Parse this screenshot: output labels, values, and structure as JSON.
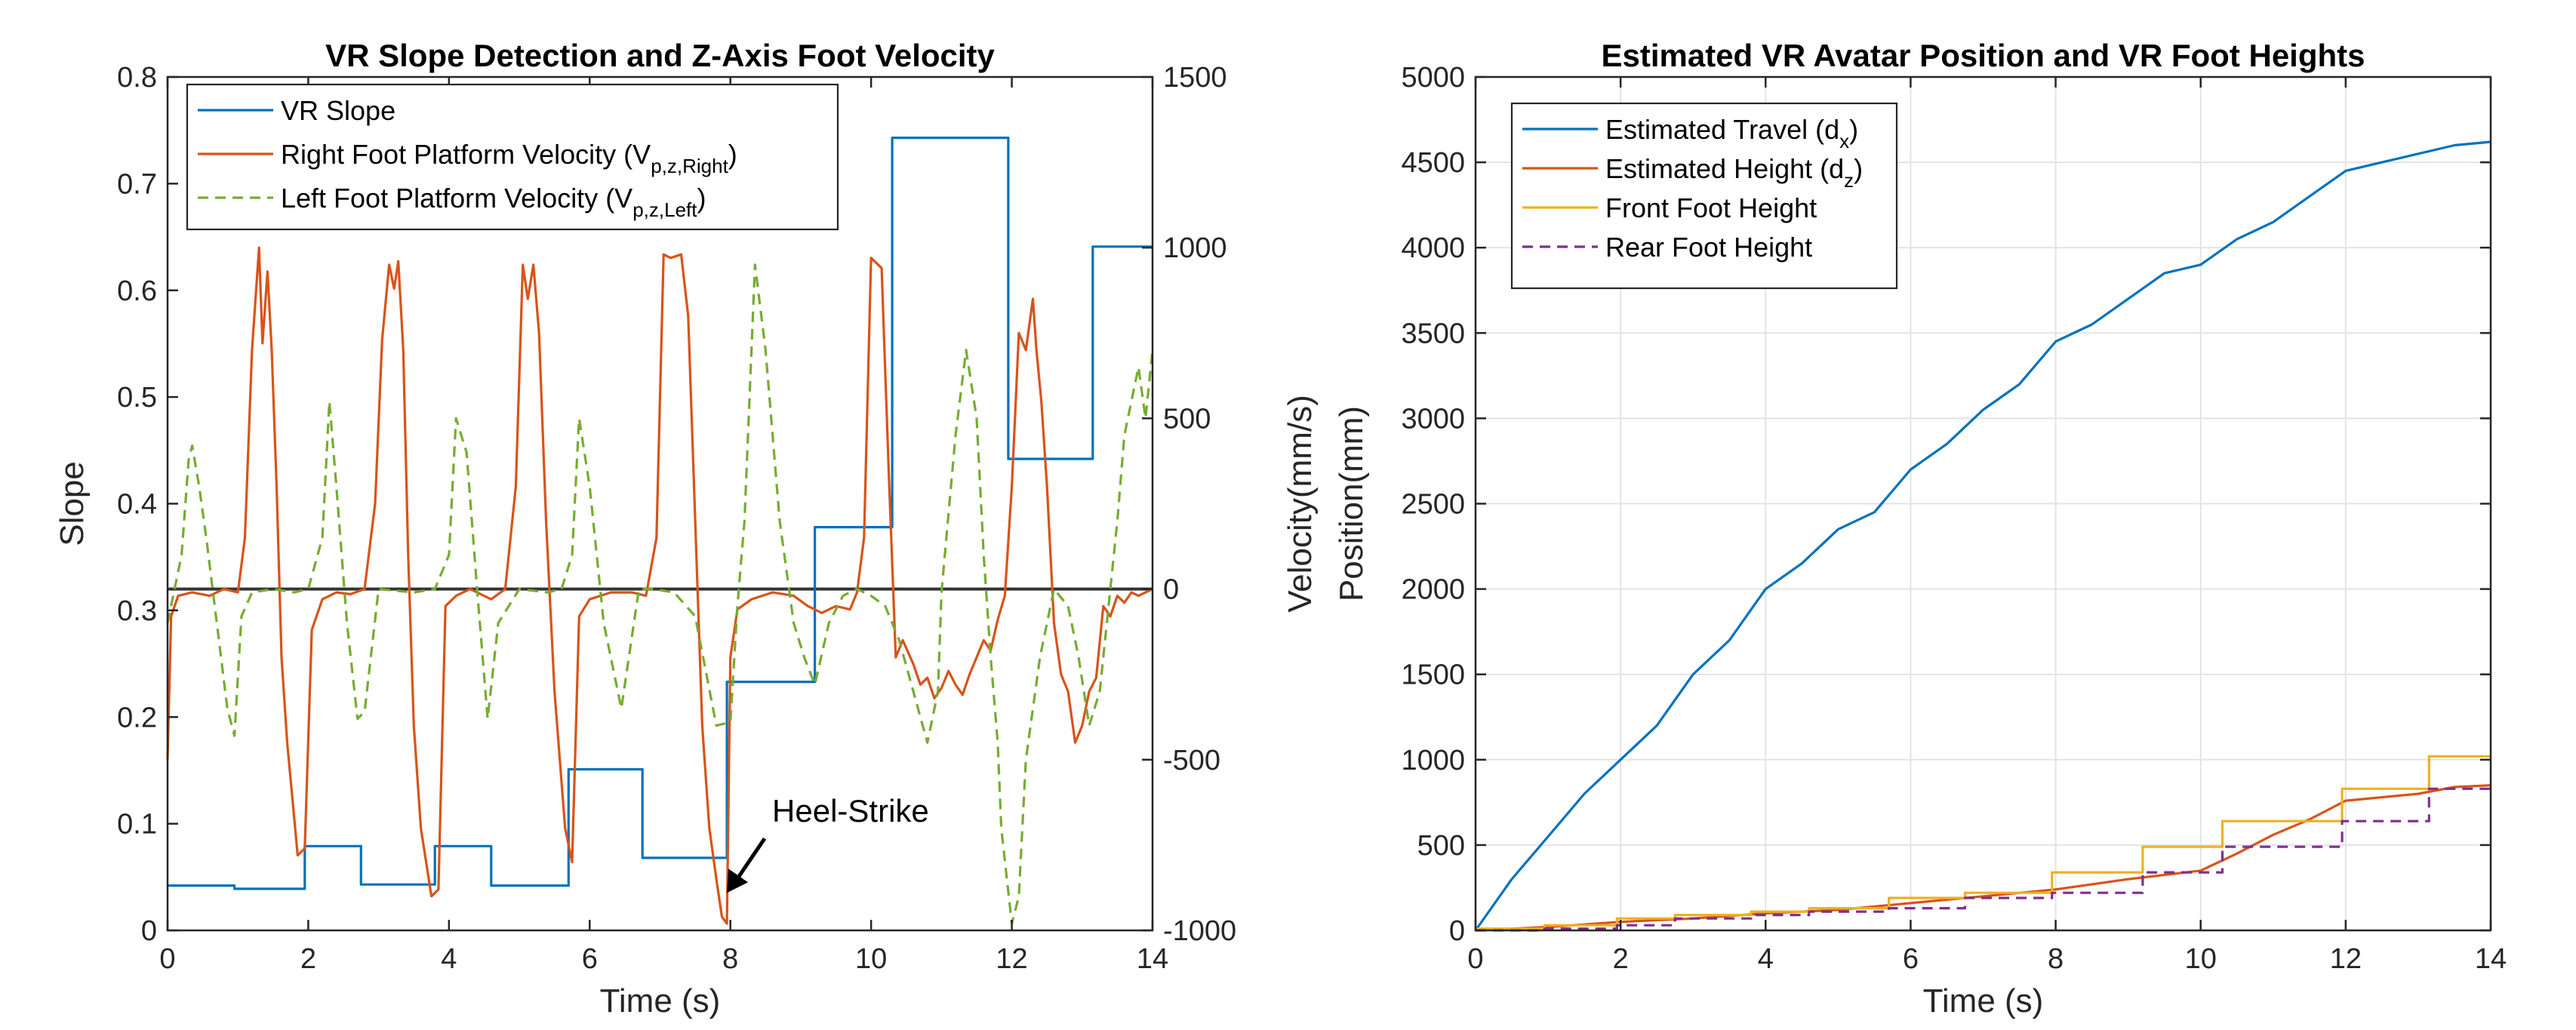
{
  "chart_data": [
    {
      "type": "line",
      "title": "VR Slope Detection and Z-Axis Foot Velocity",
      "xlabel": "Time (s)",
      "ylabel": "Slope",
      "ylabel_right": "Velocity(mm/s)",
      "xlim": [
        0,
        14
      ],
      "ylim": [
        0,
        0.8
      ],
      "ylim_right": [
        -1000,
        1500
      ],
      "x_ticks": [
        "0",
        "2",
        "4",
        "6",
        "8",
        "10",
        "12",
        "14"
      ],
      "y_ticks": [
        "0",
        "0.1",
        "0.2",
        "0.3",
        "0.4",
        "0.5",
        "0.6",
        "0.7",
        "0.8"
      ],
      "y_ticks_right": [
        "-1000",
        "-500",
        "0",
        "500",
        "1000",
        "1500"
      ],
      "grid": false,
      "legend_position": "top-left",
      "annotation": "Heel-Strike",
      "annotation_point": [
        7.95,
        -890
      ],
      "series": [
        {
          "name": "VR Slope",
          "color": "#0072BD",
          "style": "solid",
          "axis": "left",
          "step_x": [
            0,
            0.95,
            1.95,
            2.75,
            3.8,
            4.6,
            5.7,
            6.75,
            7.95,
            9.2,
            10.3,
            11.95,
            13.15,
            14
          ],
          "step_y": [
            0.042,
            0.039,
            0.079,
            0.043,
            0.079,
            0.042,
            0.151,
            0.068,
            0.233,
            0.378,
            0.743,
            0.442,
            0.641
          ]
        },
        {
          "name": "Right Foot Platform Velocity (V",
          "sub": "p,z,Right",
          "color": "#D95319",
          "style": "solid",
          "axis": "right",
          "x": [
            0,
            0.05,
            0.15,
            0.35,
            0.6,
            0.8,
            1.0,
            1.1,
            1.2,
            1.3,
            1.35,
            1.42,
            1.48,
            1.55,
            1.62,
            1.7,
            1.85,
            1.95,
            2.05,
            2.2,
            2.4,
            2.6,
            2.8,
            2.95,
            3.05,
            3.15,
            3.22,
            3.28,
            3.35,
            3.42,
            3.5,
            3.6,
            3.75,
            3.85,
            3.95,
            4.1,
            4.3,
            4.6,
            4.8,
            4.95,
            5.05,
            5.12,
            5.2,
            5.28,
            5.38,
            5.5,
            5.65,
            5.75,
            5.85,
            6.0,
            6.3,
            6.6,
            6.8,
            6.95,
            7.05,
            7.15,
            7.3,
            7.4,
            7.5,
            7.6,
            7.7,
            7.8,
            7.88,
            7.95,
            8.0,
            8.1,
            8.3,
            8.6,
            8.9,
            9.1,
            9.3,
            9.5,
            9.7,
            9.8,
            9.9,
            10.0,
            10.15,
            10.25,
            10.35,
            10.45,
            10.6,
            10.7,
            10.8,
            10.9,
            11.0,
            11.1,
            11.2,
            11.3,
            11.4,
            11.5,
            11.6,
            11.7,
            11.8,
            11.9,
            12.0,
            12.1,
            12.2,
            12.3,
            12.35,
            12.42,
            12.5,
            12.6,
            12.7,
            12.8,
            12.9,
            13.0,
            13.1,
            13.2,
            13.3,
            13.4,
            13.5,
            13.6,
            13.7,
            13.8,
            14.0
          ],
          "y": [
            -500,
            -80,
            -20,
            -10,
            -20,
            0,
            -10,
            150,
            700,
            1000,
            720,
            930,
            700,
            300,
            -200,
            -450,
            -780,
            -760,
            -120,
            -30,
            -10,
            -15,
            0,
            250,
            730,
            950,
            880,
            960,
            700,
            100,
            -400,
            -700,
            -900,
            -880,
            -50,
            -20,
            0,
            -30,
            0,
            300,
            950,
            850,
            950,
            750,
            200,
            -300,
            -700,
            -800,
            -80,
            -30,
            -10,
            -10,
            -20,
            150,
            980,
            970,
            980,
            800,
            200,
            -400,
            -700,
            -850,
            -960,
            -980,
            -200,
            -60,
            -30,
            -10,
            -20,
            -50,
            -70,
            -50,
            -60,
            -10,
            150,
            970,
            940,
            350,
            -200,
            -150,
            -220,
            -280,
            -260,
            -320,
            -290,
            -240,
            -280,
            -310,
            -250,
            -200,
            -150,
            -180,
            -90,
            -20,
            300,
            750,
            700,
            850,
            700,
            550,
            300,
            -100,
            -250,
            -300,
            -450,
            -400,
            -300,
            -260,
            -50,
            -80,
            -20,
            -40,
            -10,
            -20,
            0
          ]
        },
        {
          "name": "Left Foot Platform Velocity (V",
          "sub": "p,z,Left",
          "color": "#77AC30",
          "style": "dashed",
          "axis": "right",
          "x": [
            0,
            0.1,
            0.2,
            0.3,
            0.35,
            0.45,
            0.55,
            0.7,
            0.85,
            0.95,
            1.05,
            1.2,
            1.5,
            1.8,
            2.0,
            2.2,
            2.3,
            2.4,
            2.55,
            2.7,
            2.8,
            3.0,
            3.5,
            3.8,
            4.0,
            4.1,
            4.25,
            4.4,
            4.55,
            4.7,
            5.0,
            5.4,
            5.6,
            5.75,
            5.85,
            6.0,
            6.2,
            6.45,
            6.7,
            6.9,
            7.2,
            7.5,
            7.8,
            8.0,
            8.1,
            8.2,
            8.35,
            8.5,
            8.7,
            8.9,
            9.05,
            9.2,
            9.4,
            9.6,
            9.8,
            10.0,
            10.2,
            10.4,
            10.6,
            10.8,
            10.95,
            11.0,
            11.2,
            11.35,
            11.5,
            11.6,
            11.7,
            11.8,
            11.85,
            12.0,
            12.1,
            12.2,
            12.4,
            12.6,
            12.8,
            12.95,
            13.1,
            13.25,
            13.4,
            13.5,
            13.6,
            13.8,
            13.9,
            14.0
          ],
          "y": [
            -100,
            0,
            100,
            380,
            420,
            300,
            150,
            -100,
            -350,
            -430,
            -80,
            -10,
            0,
            -10,
            0,
            150,
            550,
            300,
            -100,
            -380,
            -360,
            0,
            -10,
            0,
            100,
            500,
            400,
            0,
            -380,
            -100,
            0,
            -10,
            0,
            100,
            500,
            300,
            -100,
            -350,
            0,
            0,
            -10,
            -80,
            -400,
            -390,
            -50,
            200,
            950,
            700,
            200,
            -100,
            -200,
            -280,
            -100,
            -20,
            0,
            -20,
            -50,
            -150,
            -300,
            -450,
            -300,
            -10,
            450,
            700,
            500,
            100,
            -200,
            -450,
            -700,
            -980,
            -900,
            -500,
            -200,
            0,
            -50,
            -200,
            -400,
            -300,
            0,
            200,
            450,
            650,
            500,
            700
          ]
        }
      ]
    },
    {
      "type": "line",
      "title": "Estimated VR Avatar Position and VR Foot Heights",
      "xlabel": "Time (s)",
      "ylabel": "Position(mm)",
      "xlim": [
        0,
        14
      ],
      "ylim": [
        0,
        5000
      ],
      "x_ticks": [
        "0",
        "2",
        "4",
        "6",
        "8",
        "10",
        "12",
        "14"
      ],
      "y_ticks": [
        "0",
        "500",
        "1000",
        "1500",
        "2000",
        "2500",
        "3000",
        "3500",
        "4000",
        "4500",
        "5000"
      ],
      "grid": true,
      "legend_position": "top-left",
      "series": [
        {
          "name": "Estimated Travel (d",
          "sub": "x",
          "color": "#0072BD",
          "style": "solid",
          "x": [
            0,
            0.5,
            1,
            1.5,
            2,
            2.5,
            3,
            3.5,
            4,
            4.5,
            5,
            5.5,
            6,
            6.5,
            7,
            7.5,
            8,
            8.5,
            9,
            9.5,
            10,
            10.5,
            11,
            11.5,
            12,
            12.5,
            13,
            13.5,
            14
          ],
          "y": [
            0,
            300,
            550,
            800,
            1000,
            1200,
            1500,
            1700,
            2000,
            2150,
            2350,
            2450,
            2700,
            2850,
            3050,
            3200,
            3450,
            3550,
            3700,
            3850,
            3900,
            4050,
            4150,
            4300,
            4450,
            4500,
            4550,
            4600,
            4620
          ]
        },
        {
          "name": "Estimated Height (d",
          "sub": "z",
          "color": "#D95319",
          "style": "solid",
          "x": [
            0,
            1,
            2,
            3,
            4,
            5,
            6,
            7,
            8,
            9,
            10,
            10.5,
            11,
            11.5,
            12,
            13,
            13.5,
            14
          ],
          "y": [
            0,
            20,
            50,
            70,
            100,
            120,
            160,
            200,
            240,
            300,
            350,
            450,
            560,
            650,
            760,
            800,
            840,
            850
          ]
        },
        {
          "name": "Front Foot Height",
          "sub": "",
          "color": "#EDB120",
          "style": "solid",
          "step_x": [
            0,
            0.95,
            1.95,
            2.75,
            3.8,
            4.6,
            5.7,
            6.75,
            7.95,
            9.2,
            10.3,
            11.95,
            13.15,
            14
          ],
          "step_y": [
            10,
            30,
            70,
            90,
            110,
            130,
            190,
            220,
            340,
            490,
            640,
            830,
            1020
          ]
        },
        {
          "name": "Rear Foot Height",
          "sub": "",
          "color": "#7E2F8E",
          "style": "dashed",
          "step_x": [
            0,
            0.95,
            1.95,
            2.75,
            3.8,
            4.6,
            5.7,
            6.75,
            7.95,
            9.2,
            10.3,
            11.95,
            13.15,
            14
          ],
          "step_y": [
            0,
            10,
            30,
            70,
            90,
            110,
            130,
            190,
            220,
            340,
            490,
            640,
            830
          ]
        }
      ]
    }
  ]
}
